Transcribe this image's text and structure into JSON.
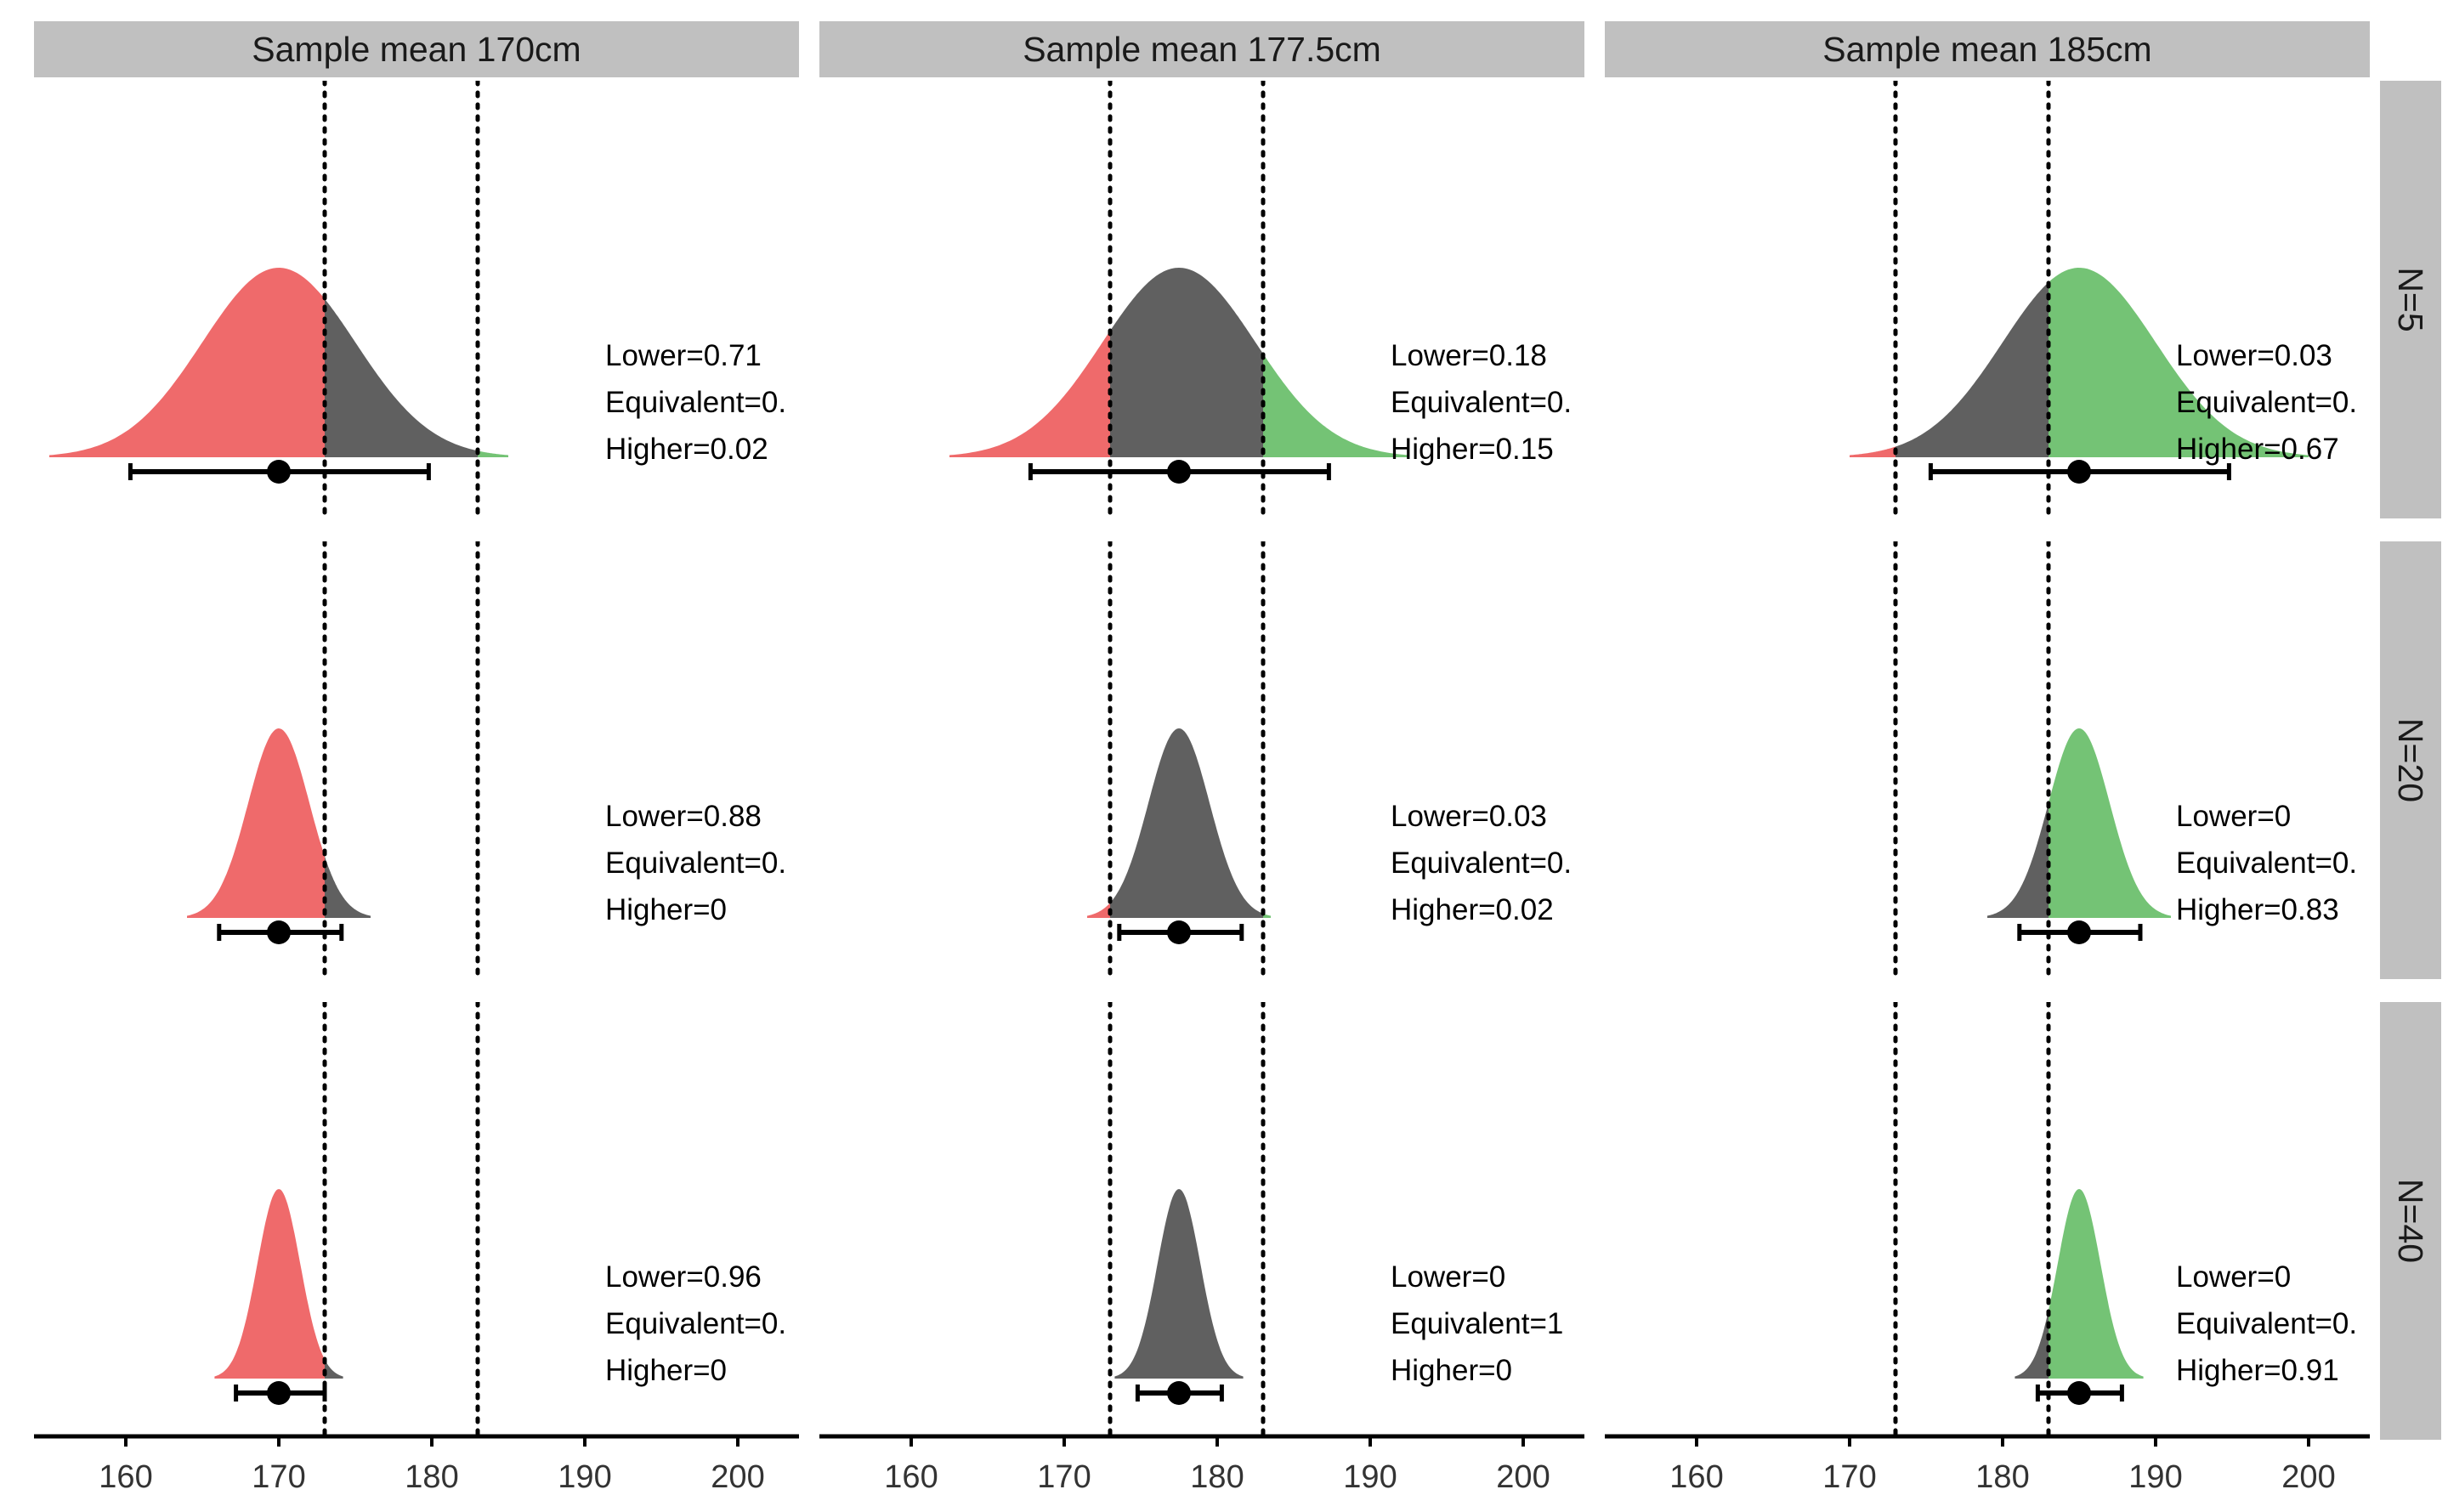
{
  "chart_data": {
    "type": "area",
    "description_kind": "faceted density plot",
    "x_axis": {
      "ticks": [
        160,
        170,
        180,
        190,
        200
      ],
      "tick_labels": [
        "160",
        "170",
        "180",
        "190",
        "200"
      ],
      "range": [
        154,
        204
      ],
      "label": ""
    },
    "bounds": [
      173,
      183
    ],
    "columns": [
      "Sample mean 170cm",
      "Sample mean 177.5cm",
      "Sample mean 185cm"
    ],
    "rows": [
      "N=5",
      "N=20",
      "N=40"
    ],
    "colors": {
      "lower": "#EF6A6B",
      "equivalent": "#606060",
      "higher": "#74C375",
      "strip": "#C0C0C0"
    },
    "grid": false,
    "legend": "none",
    "panels": [
      {
        "col": 0,
        "row": 0,
        "mean": 170,
        "ci": [
          160.3,
          179.8
        ],
        "sd": 5.0,
        "lower": "0.71",
        "equivalent": "0.",
        "higher": "0.02"
      },
      {
        "col": 1,
        "row": 0,
        "mean": 177.5,
        "ci": [
          167.8,
          187.3
        ],
        "sd": 5.0,
        "lower": "0.18",
        "equivalent": "0.",
        "higher": "0.15"
      },
      {
        "col": 2,
        "row": 0,
        "mean": 185,
        "ci": [
          175.3,
          194.8
        ],
        "sd": 5.0,
        "lower": "0.03",
        "equivalent": "0.",
        "higher": "0.67"
      },
      {
        "col": 0,
        "row": 1,
        "mean": 170,
        "ci": [
          166.1,
          174.1
        ],
        "sd": 2.0,
        "lower": "0.88",
        "equivalent": "0.",
        "higher": "0"
      },
      {
        "col": 1,
        "row": 1,
        "mean": 177.5,
        "ci": [
          173.6,
          181.6
        ],
        "sd": 2.0,
        "lower": "0.03",
        "equivalent": "0.",
        "higher": "0.02"
      },
      {
        "col": 2,
        "row": 1,
        "mean": 185,
        "ci": [
          181.1,
          189.0
        ],
        "sd": 2.0,
        "lower": "0",
        "equivalent": "0.",
        "higher": "0.83"
      },
      {
        "col": 0,
        "row": 2,
        "mean": 170,
        "ci": [
          167.2,
          173.0
        ],
        "sd": 1.4,
        "lower": "0.96",
        "equivalent": "0.",
        "higher": "0"
      },
      {
        "col": 1,
        "row": 2,
        "mean": 177.5,
        "ci": [
          174.8,
          180.3
        ],
        "sd": 1.4,
        "lower": "0",
        "equivalent": "1",
        "higher": "0"
      },
      {
        "col": 2,
        "row": 2,
        "mean": 185,
        "ci": [
          182.3,
          187.8
        ],
        "sd": 1.4,
        "lower": "0",
        "equivalent": "0.",
        "higher": "0.91"
      }
    ]
  }
}
